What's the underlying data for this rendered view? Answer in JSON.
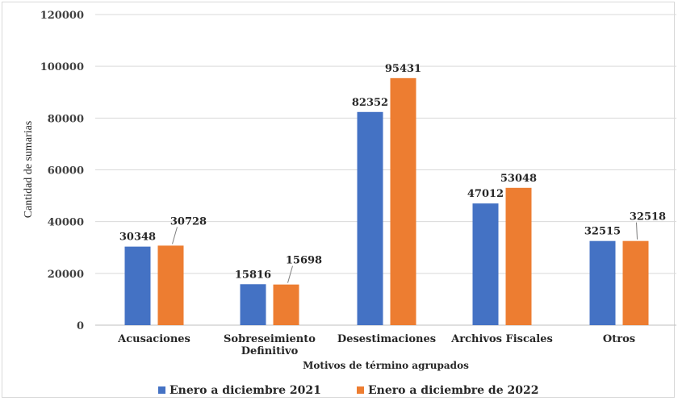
{
  "chart_data": {
    "type": "bar",
    "title": "",
    "xlabel": "Motivos de término agrupados",
    "ylabel": "Cantidad de sumarias",
    "ylim": [
      0,
      120000
    ],
    "yticks": [
      0,
      20000,
      40000,
      60000,
      80000,
      100000,
      120000
    ],
    "grid": true,
    "legend_position": "bottom",
    "categories": [
      [
        "Acusaciones"
      ],
      [
        "Sobreseimiento",
        "Definitivo"
      ],
      [
        "Desestimaciones"
      ],
      [
        "Archivos Fiscales"
      ],
      [
        "Otros"
      ]
    ],
    "series": [
      {
        "name": "Enero a diciembre 2021",
        "color": "#4472c4",
        "values": [
          30348,
          15816,
          82352,
          47012,
          32515
        ]
      },
      {
        "name": "Enero a diciembre  de 2022",
        "color": "#ed7d31",
        "values": [
          30728,
          15698,
          95431,
          53048,
          32518
        ]
      }
    ]
  }
}
